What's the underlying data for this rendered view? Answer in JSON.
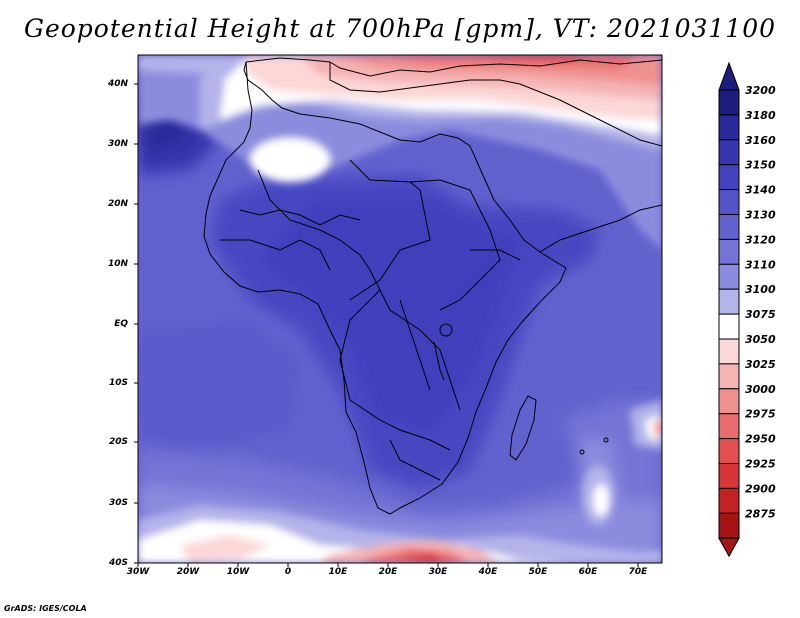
{
  "title": "Geopotential Height at 700hPa [gpm], VT: 2021031100",
  "credit": "GrADS: IGES/COLA",
  "axes": {
    "lat_labels": [
      "40N",
      "30N",
      "20N",
      "10N",
      "EQ",
      "10S",
      "20S",
      "30S",
      "40S"
    ],
    "lon_labels": [
      "30W",
      "20W",
      "10W",
      "0",
      "10E",
      "20E",
      "30E",
      "40E",
      "50E",
      "60E",
      "70E"
    ]
  },
  "colorbar": {
    "levels": [
      "3200",
      "3180",
      "3160",
      "3150",
      "3140",
      "3130",
      "3120",
      "3110",
      "3100",
      "3075",
      "3050",
      "3025",
      "3000",
      "2975",
      "2950",
      "2925",
      "2900",
      "2875"
    ],
    "colors": [
      "#1d1d7d",
      "#2a2a9a",
      "#3636ae",
      "#4343bf",
      "#5353c8",
      "#6262cf",
      "#7474d6",
      "#8c8cde",
      "#b4b4ea",
      "#ffffff",
      "#fbd7d7",
      "#f5b3b3",
      "#ef9090",
      "#e96d6d",
      "#e34f4f",
      "#d83636",
      "#c22222",
      "#a51414"
    ]
  }
}
